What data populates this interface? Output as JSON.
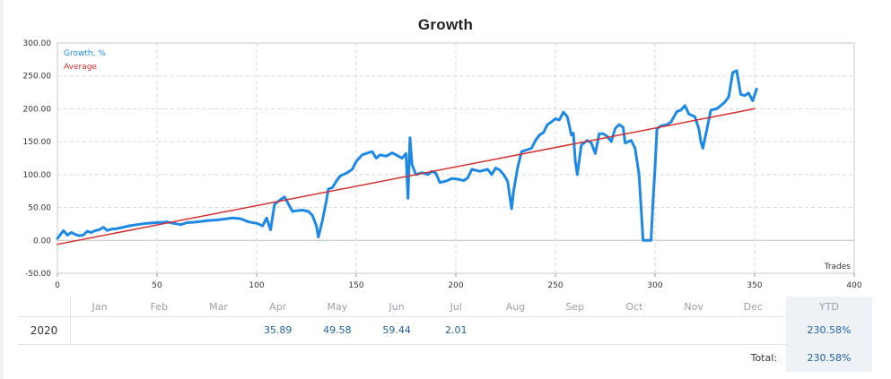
{
  "chart_data": {
    "type": "line",
    "title": "Growth",
    "xlabel": "Trades",
    "ylabel": "",
    "xlim": [
      0,
      400
    ],
    "ylim": [
      -50,
      300
    ],
    "x_ticks": [
      "0",
      "50",
      "100",
      "150",
      "200",
      "250",
      "300",
      "350",
      "400"
    ],
    "y_ticks": [
      "300.00",
      "250.00",
      "200.00",
      "150.00",
      "100.00",
      "50.00",
      "0.00",
      "-50.00"
    ],
    "grid": true,
    "legend_position": "top-left",
    "series": [
      {
        "name": "Growth, %",
        "color": "#1e88e5",
        "points": [
          [
            0,
            3
          ],
          [
            3,
            15
          ],
          [
            5,
            8
          ],
          [
            7,
            12
          ],
          [
            9,
            9
          ],
          [
            11,
            7
          ],
          [
            13,
            8
          ],
          [
            15,
            14
          ],
          [
            17,
            12
          ],
          [
            19,
            15
          ],
          [
            21,
            16
          ],
          [
            23,
            20
          ],
          [
            25,
            15
          ],
          [
            27,
            17
          ],
          [
            30,
            18
          ],
          [
            33,
            20
          ],
          [
            36,
            22
          ],
          [
            40,
            24
          ],
          [
            45,
            26
          ],
          [
            50,
            27
          ],
          [
            55,
            28
          ],
          [
            58,
            26
          ],
          [
            62,
            24
          ],
          [
            65,
            27
          ],
          [
            70,
            28
          ],
          [
            75,
            30
          ],
          [
            80,
            31
          ],
          [
            85,
            33
          ],
          [
            88,
            34
          ],
          [
            92,
            33
          ],
          [
            96,
            28
          ],
          [
            100,
            26
          ],
          [
            103,
            22
          ],
          [
            105,
            34
          ],
          [
            107,
            16
          ],
          [
            109,
            55
          ],
          [
            112,
            62
          ],
          [
            114,
            66
          ],
          [
            116,
            55
          ],
          [
            118,
            44
          ],
          [
            120,
            45
          ],
          [
            123,
            46
          ],
          [
            126,
            44
          ],
          [
            128,
            38
          ],
          [
            130,
            22
          ],
          [
            131,
            5
          ],
          [
            133,
            30
          ],
          [
            135,
            60
          ],
          [
            136,
            78
          ],
          [
            138,
            80
          ],
          [
            140,
            90
          ],
          [
            142,
            98
          ],
          [
            145,
            102
          ],
          [
            148,
            108
          ],
          [
            150,
            120
          ],
          [
            153,
            130
          ],
          [
            156,
            133
          ],
          [
            158,
            135
          ],
          [
            160,
            125
          ],
          [
            162,
            130
          ],
          [
            165,
            128
          ],
          [
            168,
            133
          ],
          [
            170,
            130
          ],
          [
            173,
            125
          ],
          [
            175,
            132
          ],
          [
            176,
            64
          ],
          [
            177,
            156
          ],
          [
            178,
            115
          ],
          [
            180,
            100
          ],
          [
            183,
            103
          ],
          [
            186,
            100
          ],
          [
            188,
            105
          ],
          [
            190,
            102
          ],
          [
            192,
            88
          ],
          [
            195,
            90
          ],
          [
            198,
            94
          ],
          [
            201,
            93
          ],
          [
            204,
            91
          ],
          [
            206,
            95
          ],
          [
            208,
            108
          ],
          [
            212,
            105
          ],
          [
            216,
            108
          ],
          [
            218,
            100
          ],
          [
            220,
            110
          ],
          [
            222,
            107
          ],
          [
            224,
            100
          ],
          [
            226,
            90
          ],
          [
            228,
            48
          ],
          [
            229,
            75
          ],
          [
            231,
            110
          ],
          [
            233,
            135
          ],
          [
            236,
            138
          ],
          [
            238,
            140
          ],
          [
            240,
            152
          ],
          [
            242,
            160
          ],
          [
            244,
            164
          ],
          [
            246,
            176
          ],
          [
            248,
            180
          ],
          [
            250,
            185
          ],
          [
            252,
            183
          ],
          [
            254,
            195
          ],
          [
            256,
            188
          ],
          [
            258,
            160
          ],
          [
            259,
            163
          ],
          [
            260,
            120
          ],
          [
            261,
            100
          ],
          [
            263,
            145
          ],
          [
            266,
            152
          ],
          [
            268,
            148
          ],
          [
            270,
            132
          ],
          [
            272,
            162
          ],
          [
            274,
            162
          ],
          [
            276,
            158
          ],
          [
            278,
            150
          ],
          [
            280,
            170
          ],
          [
            282,
            176
          ],
          [
            284,
            172
          ],
          [
            285,
            148
          ],
          [
            288,
            152
          ],
          [
            290,
            140
          ],
          [
            292,
            100
          ],
          [
            294,
            0
          ],
          [
            296,
            0
          ],
          [
            298,
            0
          ],
          [
            299,
            60
          ],
          [
            300,
            110
          ],
          [
            301,
            170
          ],
          [
            303,
            174
          ],
          [
            306,
            176
          ],
          [
            308,
            180
          ],
          [
            311,
            196
          ],
          [
            313,
            198
          ],
          [
            315,
            205
          ],
          [
            317,
            192
          ],
          [
            320,
            188
          ],
          [
            322,
            170
          ],
          [
            323,
            150
          ],
          [
            324,
            140
          ],
          [
            326,
            168
          ],
          [
            328,
            198
          ],
          [
            331,
            200
          ],
          [
            333,
            205
          ],
          [
            335,
            210
          ],
          [
            337,
            218
          ],
          [
            339,
            255
          ],
          [
            341,
            258
          ],
          [
            343,
            222
          ],
          [
            345,
            220
          ],
          [
            347,
            224
          ],
          [
            349,
            212
          ],
          [
            351,
            230
          ]
        ]
      },
      {
        "name": "Average",
        "color": "#d32f2f",
        "points": [
          [
            0,
            -6
          ],
          [
            350,
            200
          ]
        ]
      }
    ]
  },
  "table": {
    "months": [
      "Jan",
      "Feb",
      "Mar",
      "Apr",
      "May",
      "Jun",
      "Jul",
      "Aug",
      "Sep",
      "Oct",
      "Nov",
      "Dec"
    ],
    "ytd_label": "YTD",
    "rows": [
      {
        "year": "2020",
        "values": [
          "",
          "",
          "",
          "35.89",
          "49.58",
          "59.44",
          "2.01",
          "",
          "",
          "",
          "",
          ""
        ],
        "ytd": "230.58%"
      }
    ],
    "total_label": "Total:",
    "total_value": "230.58%"
  }
}
